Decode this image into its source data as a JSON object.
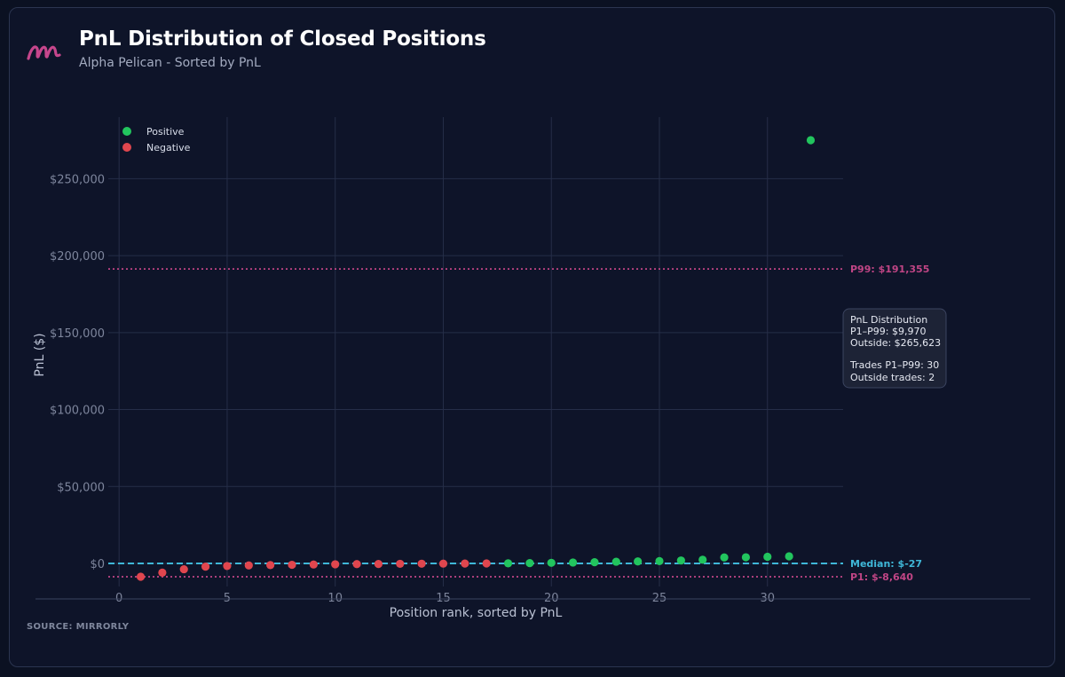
{
  "header": {
    "title": "PnL Distribution of Closed Positions",
    "subtitle": "Alpha Pelican - Sorted by PnL"
  },
  "footer": {
    "source": "SOURCE: MIRRORLY"
  },
  "colors": {
    "positive": "#22c55e",
    "negative": "#e0464e",
    "percentile": "#c04585",
    "median": "#3fb7d8",
    "grid": "#262e48"
  },
  "legend": {
    "positive_label": "Positive",
    "negative_label": "Negative"
  },
  "infobox": {
    "title": "PnL Distribution",
    "range_value": "P1–P99: $9,970",
    "outside_value": "Outside: $265,623",
    "trades_in_range": "Trades P1–P99: 30",
    "trades_outside": "Outside trades: 2"
  },
  "chart_data": {
    "type": "scatter",
    "xlabel": "Position rank, sorted by PnL",
    "ylabel": "PnL ($)",
    "xlim": [
      -0.5,
      33.5
    ],
    "ylim": [
      -15000,
      290000
    ],
    "x_ticks": [
      0,
      5,
      10,
      15,
      20,
      25,
      30
    ],
    "x_tick_labels": [
      "0",
      "5",
      "10",
      "15",
      "20",
      "25",
      "30"
    ],
    "y_ticks": [
      0,
      50000,
      100000,
      150000,
      200000,
      250000
    ],
    "y_tick_labels": [
      "$0",
      "$50,000",
      "$100,000",
      "$150,000",
      "$200,000",
      "$250,000"
    ],
    "grid": true,
    "legend_position": "top-left",
    "series": [
      {
        "name": "Negative",
        "x": [
          1,
          2,
          3,
          4,
          5,
          6,
          7,
          8,
          9,
          10,
          11,
          12,
          13,
          14,
          15,
          16,
          17
        ],
        "y": [
          -8640,
          -6000,
          -3800,
          -2100,
          -1700,
          -1300,
          -1100,
          -900,
          -700,
          -550,
          -450,
          -350,
          -250,
          -180,
          -120,
          -70,
          -27
        ]
      },
      {
        "name": "Positive",
        "x": [
          18,
          19,
          20,
          21,
          22,
          23,
          24,
          25,
          26,
          27,
          28,
          29,
          30,
          31,
          32
        ],
        "y": [
          60,
          200,
          400,
          600,
          800,
          1100,
          1300,
          1500,
          1900,
          2400,
          3900,
          4000,
          4300,
          4600,
          275000
        ]
      }
    ],
    "reference_lines": [
      {
        "label": "P99: $191,355",
        "y": 191355,
        "style": "dotted",
        "color_key": "percentile"
      },
      {
        "label": "Median: $-27",
        "y": -27,
        "style": "dashed",
        "color_key": "median"
      },
      {
        "label": "P1: $-8,640",
        "y": -8640,
        "style": "dotted",
        "color_key": "percentile"
      }
    ]
  }
}
